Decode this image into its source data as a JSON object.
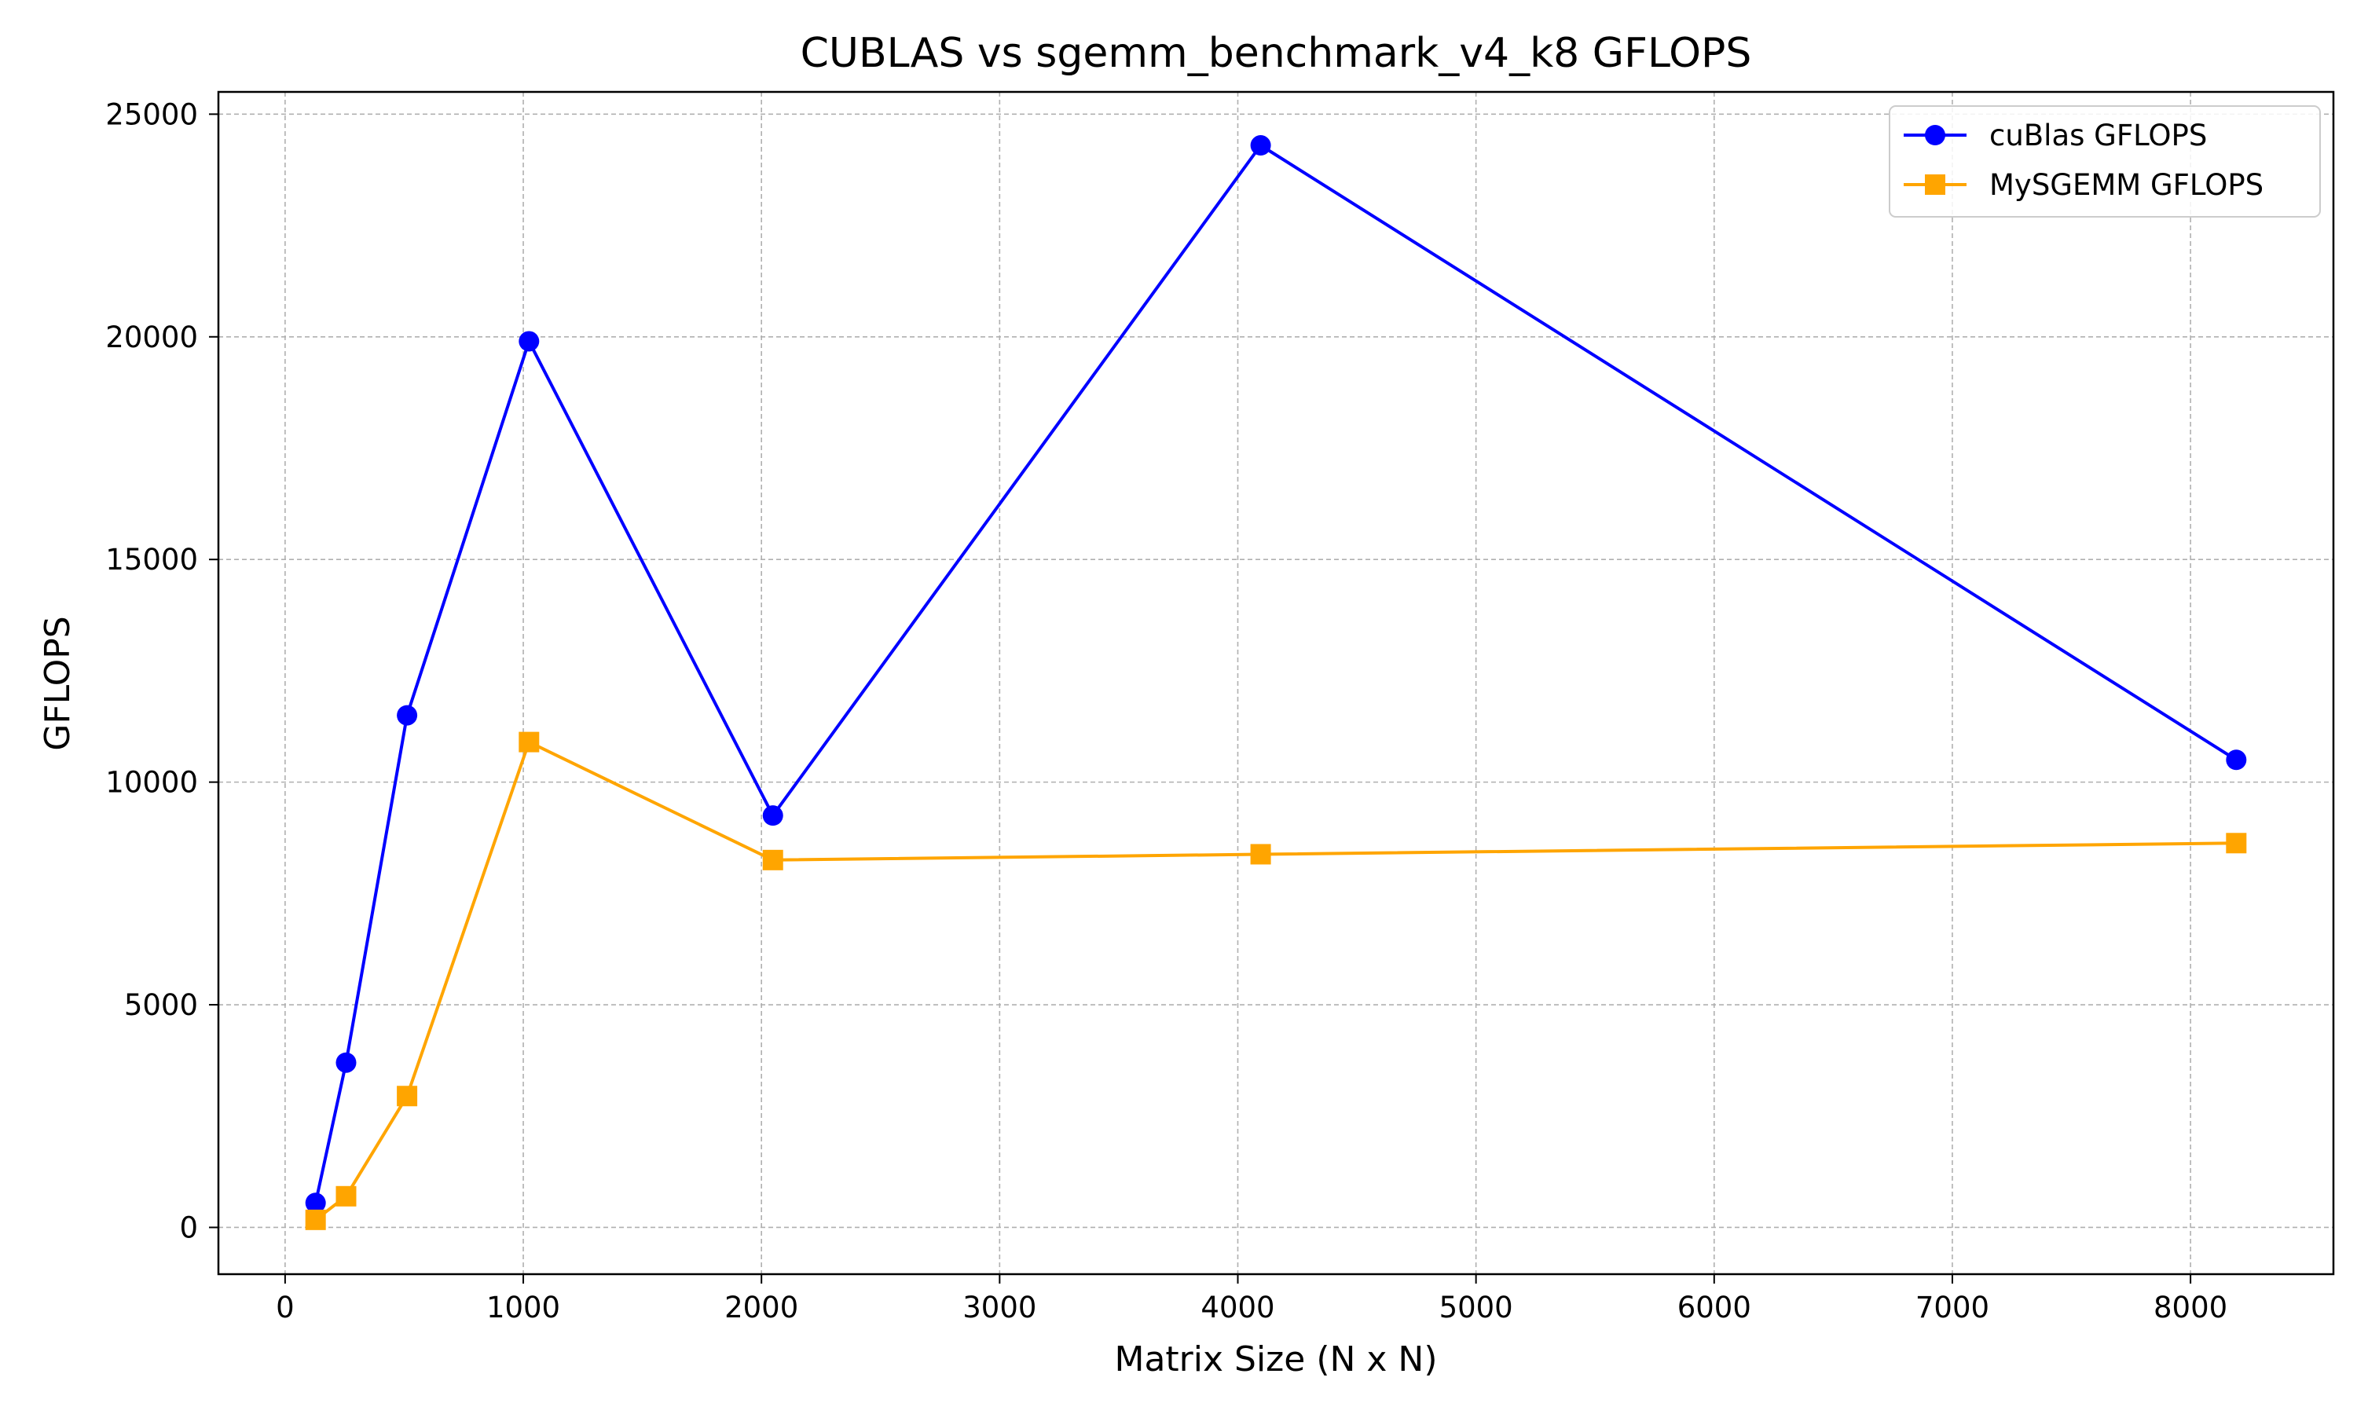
{
  "chart_data": {
    "type": "line",
    "title": "CUBLAS vs sgemm_benchmark_v4_k8 GFLOPS",
    "xlabel": "Matrix Size (N x N)",
    "ylabel": "GFLOPS",
    "xlim": [
      -280,
      8600
    ],
    "ylim": [
      -1050,
      25500
    ],
    "x_ticks": [
      0,
      1000,
      2000,
      3000,
      4000,
      5000,
      6000,
      7000,
      8000
    ],
    "y_ticks": [
      0,
      5000,
      10000,
      15000,
      20000,
      25000
    ],
    "grid": true,
    "legend_position": "top-right",
    "series": [
      {
        "name": "cuBlas GFLOPS",
        "color": "#0000ff",
        "marker": "circle",
        "x": [
          128,
          256,
          512,
          1024,
          2048,
          4096,
          8192
        ],
        "y": [
          550,
          3700,
          11500,
          19900,
          9250,
          24300,
          10500
        ]
      },
      {
        "name": "MySGEMM GFLOPS",
        "color": "#ffa500",
        "marker": "square",
        "x": [
          128,
          256,
          512,
          1024,
          2048,
          4096,
          8192
        ],
        "y": [
          170,
          700,
          2950,
          10900,
          8250,
          8380,
          8630
        ]
      }
    ]
  }
}
